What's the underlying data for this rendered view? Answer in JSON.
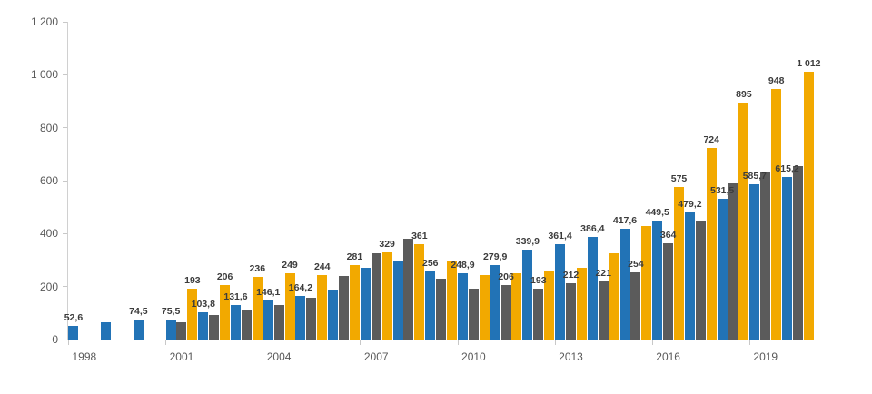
{
  "chart_data": {
    "type": "bar",
    "title": "",
    "legend": "none",
    "grid": "none",
    "number_format": "comma decimal, space thousands separator",
    "years": [
      1998,
      1999,
      2000,
      2001,
      2002,
      2003,
      2004,
      2005,
      2006,
      2007,
      2008,
      2009,
      2010,
      2011,
      2012,
      2013,
      2014,
      2015,
      2016,
      2017,
      2018,
      2019,
      2020
    ],
    "series": [
      {
        "name": "series-blue",
        "color": "#2273b6",
        "values": [
          52.6,
          65,
          74.5,
          75.5,
          103.8,
          131.6,
          146.1,
          164.2,
          190,
          270,
          300,
          256,
          248.9,
          279.9,
          339.9,
          361.4,
          386.4,
          417.6,
          449.5,
          479.2,
          531.5,
          585.7,
          615.2
        ],
        "labels": [
          "52,6",
          null,
          "74,5",
          "75,5",
          "103,8",
          "131,6",
          "146,1",
          "164,2",
          null,
          null,
          null,
          "256",
          "248,9",
          "279,9",
          "339,9",
          "361,4",
          "386,4",
          "417,6",
          "449,5",
          "479,2",
          "531,5",
          "585,7",
          "615,2"
        ]
      },
      {
        "name": "series-gray",
        "color": "#5b5b5b",
        "values": [
          null,
          null,
          null,
          66,
          92,
          112,
          130,
          158,
          240,
          325,
          380,
          230,
          192,
          206,
          193,
          212,
          221,
          254,
          364,
          450,
          590,
          635,
          655
        ],
        "labels": [
          null,
          null,
          null,
          null,
          null,
          null,
          null,
          null,
          null,
          null,
          null,
          null,
          null,
          "206",
          "193",
          "212",
          "221",
          "254",
          "364",
          null,
          null,
          null,
          null
        ]
      },
      {
        "name": "series-yellow",
        "color": "#f2a900",
        "values": [
          null,
          null,
          null,
          193,
          206,
          236,
          249,
          244,
          281,
          329,
          361,
          295,
          245,
          250,
          260,
          270,
          327,
          430,
          575,
          724,
          895,
          948,
          1012
        ],
        "labels": [
          null,
          null,
          null,
          "193",
          "206",
          "236",
          "249",
          "244",
          "281",
          "329",
          "361",
          null,
          null,
          null,
          null,
          null,
          null,
          null,
          "575",
          "724",
          "895",
          "948",
          "1 012"
        ]
      }
    ],
    "y_axis": {
      "min": 0,
      "max": 1200,
      "tick_step": 200,
      "tick_labels": [
        "0",
        "200",
        "400",
        "600",
        "800",
        "1 000",
        "1 200"
      ]
    },
    "x_axis": {
      "tick_labels": [
        "1998",
        "2001",
        "2004",
        "2007",
        "2010",
        "2013",
        "2016",
        "2019"
      ],
      "label_interval_years": 3
    }
  },
  "colors": {
    "background": "#ffffff",
    "axis_line": "#d0d0d0",
    "axis_text": "#595959",
    "data_label_text": "#3c3c3c",
    "bar_blue": "#2273b6",
    "bar_gray": "#5b5b5b",
    "bar_yellow": "#f2a900"
  }
}
